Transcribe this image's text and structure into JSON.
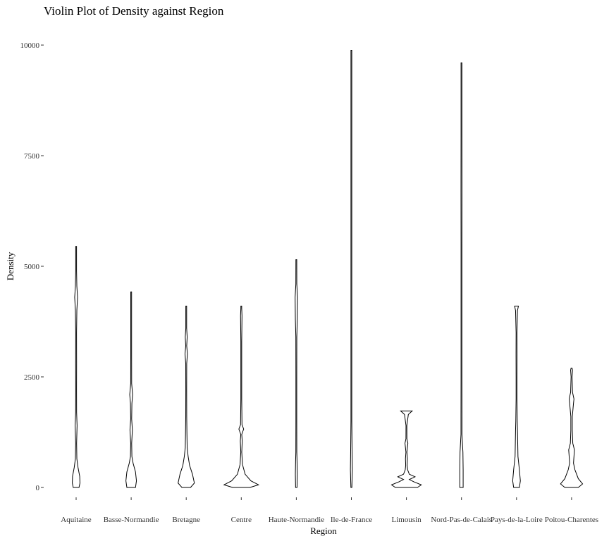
{
  "chart_data": {
    "type": "violin",
    "title": "Violin Plot of Density against Region",
    "xlabel": "Region",
    "ylabel": "Density",
    "ylim": [
      0,
      10000
    ],
    "yticks": [
      0,
      2500,
      5000,
      7500,
      10000
    ],
    "yticklabels": [
      "0",
      "2500",
      "5000",
      "7500",
      "10000"
    ],
    "grid": false,
    "legend": "none",
    "colors": {
      "violin_fill": "#ffffff",
      "violin_stroke": "#000000"
    },
    "categories": [
      "Aquitaine",
      "Basse-Normandie",
      "Bretagne",
      "Centre",
      "Haute-Normandie",
      "Ile-de-France",
      "Limousin",
      "Nord-Pas-de-Calais",
      "Pays-de-la-Loire",
      "Poitou-Charentes"
    ],
    "violins": [
      {
        "region": "Aquitaine",
        "min": 0,
        "max": 5450,
        "profile": [
          [
            0,
            0.12
          ],
          [
            100,
            0.16
          ],
          [
            250,
            0.15
          ],
          [
            450,
            0.08
          ],
          [
            650,
            0.03
          ],
          [
            1000,
            0.02
          ],
          [
            1400,
            0.04
          ],
          [
            1700,
            0.02
          ],
          [
            2200,
            0.015
          ],
          [
            2800,
            0.02
          ],
          [
            3500,
            0.01
          ],
          [
            4000,
            0.03
          ],
          [
            4300,
            0.06
          ],
          [
            4550,
            0.03
          ],
          [
            4900,
            0.01
          ],
          [
            5450,
            0.005
          ]
        ]
      },
      {
        "region": "Basse-Normandie",
        "min": 0,
        "max": 4420,
        "profile": [
          [
            0,
            0.18
          ],
          [
            150,
            0.22
          ],
          [
            350,
            0.18
          ],
          [
            550,
            0.08
          ],
          [
            700,
            0.03
          ],
          [
            1000,
            0.02
          ],
          [
            1300,
            0.05
          ],
          [
            1550,
            0.02
          ],
          [
            1900,
            0.03
          ],
          [
            2100,
            0.06
          ],
          [
            2350,
            0.02
          ],
          [
            3000,
            0.01
          ],
          [
            3800,
            0.01
          ],
          [
            4420,
            0.005
          ]
        ]
      },
      {
        "region": "Bretagne",
        "min": 0,
        "max": 4100,
        "profile": [
          [
            0,
            0.18
          ],
          [
            100,
            0.34
          ],
          [
            300,
            0.26
          ],
          [
            500,
            0.14
          ],
          [
            700,
            0.08
          ],
          [
            900,
            0.04
          ],
          [
            1200,
            0.03
          ],
          [
            1600,
            0.02
          ],
          [
            2200,
            0.01
          ],
          [
            2800,
            0.02
          ],
          [
            3020,
            0.05
          ],
          [
            3200,
            0.02
          ],
          [
            3400,
            0.04
          ],
          [
            3600,
            0.01
          ],
          [
            4050,
            0.015
          ],
          [
            4100,
            0.005
          ]
        ]
      },
      {
        "region": "Centre",
        "min": 0,
        "max": 4100,
        "profile": [
          [
            0,
            0.36
          ],
          [
            60,
            0.72
          ],
          [
            150,
            0.4
          ],
          [
            300,
            0.16
          ],
          [
            420,
            0.1
          ],
          [
            520,
            0.05
          ],
          [
            800,
            0.02
          ],
          [
            1050,
            0.04
          ],
          [
            1200,
            0.02
          ],
          [
            1320,
            0.1
          ],
          [
            1420,
            0.03
          ],
          [
            2000,
            0.015
          ],
          [
            2700,
            0.01
          ],
          [
            3300,
            0.01
          ],
          [
            3880,
            0.03
          ],
          [
            4050,
            0.015
          ],
          [
            4100,
            0.005
          ]
        ]
      },
      {
        "region": "Haute-Normandie",
        "min": 0,
        "max": 5150,
        "profile": [
          [
            0,
            0.03
          ],
          [
            300,
            0.04
          ],
          [
            600,
            0.03
          ],
          [
            800,
            0.02
          ],
          [
            1500,
            0.015
          ],
          [
            2500,
            0.015
          ],
          [
            3400,
            0.02
          ],
          [
            3800,
            0.04
          ],
          [
            4300,
            0.05
          ],
          [
            4600,
            0.02
          ],
          [
            5150,
            0.005
          ]
        ]
      },
      {
        "region": "Ile-de-France",
        "min": 0,
        "max": 9880,
        "profile": [
          [
            0,
            0.02
          ],
          [
            400,
            0.04
          ],
          [
            800,
            0.03
          ],
          [
            1500,
            0.015
          ],
          [
            3000,
            0.015
          ],
          [
            5000,
            0.015
          ],
          [
            7000,
            0.015
          ],
          [
            9880,
            0.01
          ]
        ]
      },
      {
        "region": "Limousin",
        "min": 0,
        "max": 1730,
        "profile": [
          [
            0,
            0.46
          ],
          [
            60,
            0.62
          ],
          [
            130,
            0.3
          ],
          [
            180,
            0.12
          ],
          [
            240,
            0.36
          ],
          [
            300,
            0.12
          ],
          [
            400,
            0.05
          ],
          [
            500,
            0.03
          ],
          [
            650,
            0.04
          ],
          [
            800,
            0.02
          ],
          [
            1000,
            0.06
          ],
          [
            1100,
            0.02
          ],
          [
            1400,
            0.015
          ],
          [
            1650,
            0.08
          ],
          [
            1730,
            0.24
          ]
        ]
      },
      {
        "region": "Nord-Pas-de-Calais",
        "min": 0,
        "max": 9600,
        "profile": [
          [
            0,
            0.07
          ],
          [
            400,
            0.07
          ],
          [
            800,
            0.06
          ],
          [
            1200,
            0.02
          ],
          [
            1600,
            0.02
          ],
          [
            2500,
            0.015
          ],
          [
            4000,
            0.01
          ],
          [
            5500,
            0.01
          ],
          [
            6700,
            0.02
          ],
          [
            8000,
            0.01
          ],
          [
            9600,
            0.005
          ]
        ]
      },
      {
        "region": "Pays-de-la-Loire",
        "min": 0,
        "max": 4100,
        "profile": [
          [
            0,
            0.12
          ],
          [
            150,
            0.16
          ],
          [
            400,
            0.12
          ],
          [
            700,
            0.06
          ],
          [
            1000,
            0.05
          ],
          [
            1300,
            0.04
          ],
          [
            1500,
            0.03
          ],
          [
            2000,
            0.015
          ],
          [
            2500,
            0.015
          ],
          [
            3000,
            0.02
          ],
          [
            3500,
            0.015
          ],
          [
            4000,
            0.04
          ],
          [
            4100,
            0.08
          ]
        ]
      },
      {
        "region": "Poitou-Charentes",
        "min": 0,
        "max": 2700,
        "profile": [
          [
            0,
            0.28
          ],
          [
            80,
            0.46
          ],
          [
            200,
            0.28
          ],
          [
            400,
            0.14
          ],
          [
            550,
            0.08
          ],
          [
            700,
            0.1
          ],
          [
            850,
            0.12
          ],
          [
            1000,
            0.05
          ],
          [
            1300,
            0.03
          ],
          [
            1600,
            0.03
          ],
          [
            1900,
            0.08
          ],
          [
            2000,
            0.1
          ],
          [
            2150,
            0.04
          ],
          [
            2500,
            0.02
          ],
          [
            2650,
            0.04
          ],
          [
            2700,
            0.02
          ]
        ]
      }
    ]
  }
}
